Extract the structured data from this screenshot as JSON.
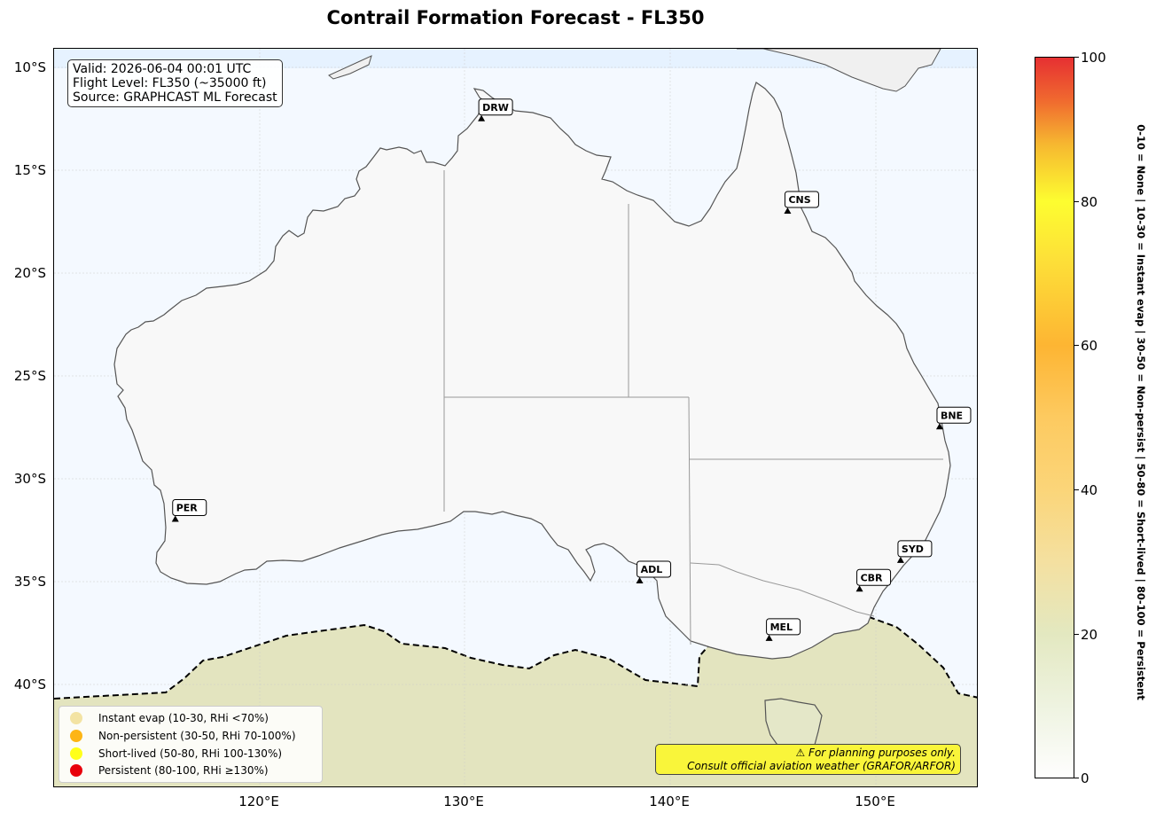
{
  "title": "Contrail Formation Forecast - FL350",
  "info": {
    "valid": "Valid: 2026-06-04 00:01 UTC",
    "flight_level": "Flight Level: FL350 (~35000 ft)",
    "source": "Source: GRAPHCAST ML Forecast"
  },
  "map": {
    "lon_range": [
      110,
      155
    ],
    "lat_range": [
      -45,
      -9
    ],
    "lat_ticks": [
      "10°S",
      "15°S",
      "20°S",
      "25°S",
      "30°S",
      "35°S",
      "40°S"
    ],
    "lon_ticks": [
      "120°E",
      "130°E",
      "140°E",
      "150°E"
    ],
    "ocean_color": "#f4f9ff",
    "land_color": "#f8f8f8",
    "contrail_zone_color": "#e3e4bf"
  },
  "airports": [
    {
      "code": "DRW",
      "lon": 130.8,
      "lat": -12.4
    },
    {
      "code": "CNS",
      "lon": 145.7,
      "lat": -16.9
    },
    {
      "code": "BNE",
      "lon": 153.1,
      "lat": -27.4
    },
    {
      "code": "PER",
      "lon": 115.9,
      "lat": -31.9
    },
    {
      "code": "ADL",
      "lon": 138.5,
      "lat": -34.9
    },
    {
      "code": "SYD",
      "lon": 151.2,
      "lat": -33.9
    },
    {
      "code": "CBR",
      "lon": 149.2,
      "lat": -35.3
    },
    {
      "code": "MEL",
      "lon": 144.8,
      "lat": -37.7
    }
  ],
  "legend": [
    {
      "label": "Instant evap (10-30, RHi <70%)",
      "color": "#f3e3a3"
    },
    {
      "label": "Non-persistent (30-50, RHi 70-100%)",
      "color": "#fdb515"
    },
    {
      "label": "Short-lived (50-80, RHi 100-130%)",
      "color": "#ffff1a"
    },
    {
      "label": "Persistent (80-100, RHi ≥130%)",
      "color": "#e8000b"
    }
  ],
  "disclaimer": {
    "line1": "⚠ For planning purposes only.",
    "line2": "Consult official aviation weather (GRAFOR/ARFOR)"
  },
  "colorbar": {
    "ticks": [
      "0",
      "20",
      "40",
      "60",
      "80",
      "100"
    ],
    "range": [
      0,
      100
    ],
    "label": "0-10 = None  |  10-30 = Instant evap  |  30-50 = Non-persist  |  50-80 = Short-lived  |  80-100 = Persistent"
  }
}
